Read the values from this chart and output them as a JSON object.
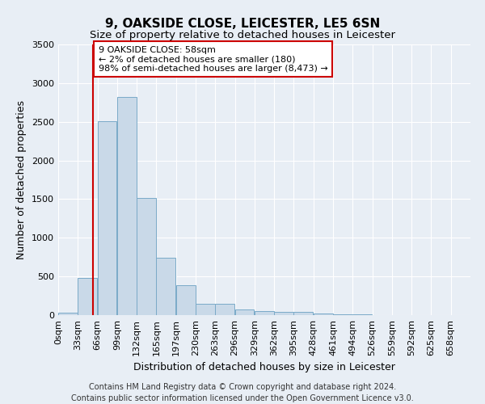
{
  "title": "9, OAKSIDE CLOSE, LEICESTER, LE5 6SN",
  "subtitle": "Size of property relative to detached houses in Leicester",
  "xlabel": "Distribution of detached houses by size in Leicester",
  "ylabel": "Number of detached properties",
  "footer_line1": "Contains HM Land Registry data © Crown copyright and database right 2024.",
  "footer_line2": "Contains public sector information licensed under the Open Government Licence v3.0.",
  "bin_labels": [
    "0sqm",
    "33sqm",
    "66sqm",
    "99sqm",
    "132sqm",
    "165sqm",
    "197sqm",
    "230sqm",
    "263sqm",
    "296sqm",
    "329sqm",
    "362sqm",
    "395sqm",
    "428sqm",
    "461sqm",
    "494sqm",
    "526sqm",
    "559sqm",
    "592sqm",
    "625sqm",
    "658sqm"
  ],
  "bar_values": [
    30,
    480,
    2510,
    2820,
    1510,
    740,
    390,
    150,
    150,
    70,
    55,
    40,
    40,
    25,
    15,
    10,
    5,
    5,
    3,
    2,
    2
  ],
  "bar_color": "#c9d9e8",
  "bar_edge_color": "#7aaac8",
  "red_line_x": 58,
  "red_line_color": "#cc0000",
  "annotation_text": "9 OAKSIDE CLOSE: 58sqm\n← 2% of detached houses are smaller (180)\n98% of semi-detached houses are larger (8,473) →",
  "annotation_box_color": "#ffffff",
  "annotation_box_edge_color": "#cc0000",
  "ylim": [
    0,
    3500
  ],
  "xlim_min": 0,
  "xlim_max": 693,
  "bin_width": 33,
  "title_fontsize": 11,
  "subtitle_fontsize": 9.5,
  "axis_label_fontsize": 9,
  "tick_fontsize": 8,
  "annotation_fontsize": 8,
  "footer_fontsize": 7,
  "background_color": "#e8eef5",
  "plot_background_color": "#e8eef5",
  "grid_color": "#ffffff"
}
